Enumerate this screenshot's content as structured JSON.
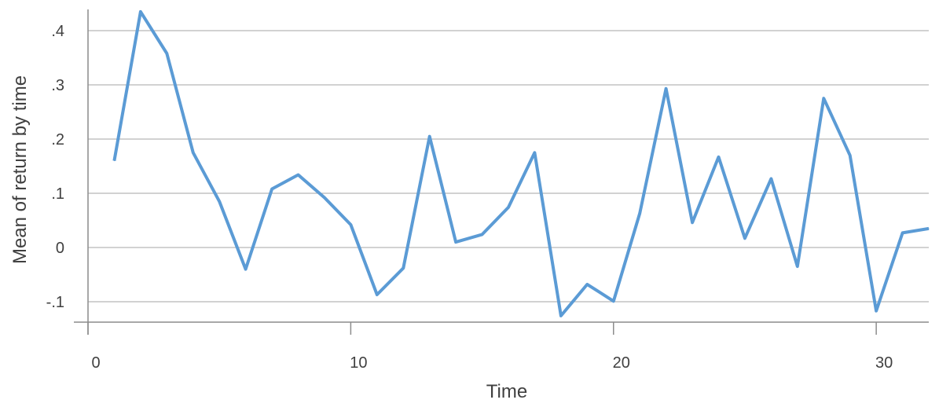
{
  "chart_data": {
    "type": "line",
    "title": "",
    "xlabel": "Time",
    "ylabel": "Mean of return by time",
    "xlim": [
      0,
      32
    ],
    "ylim": [
      -0.14,
      0.44
    ],
    "x_ticks": [
      0,
      10,
      20,
      30
    ],
    "x_tick_labels": [
      "0",
      "10",
      "20",
      "30"
    ],
    "y_ticks": [
      -0.1,
      0,
      0.1,
      0.2,
      0.3,
      0.4
    ],
    "y_tick_labels": [
      "-.1",
      "0",
      ".1",
      ".2",
      ".3",
      ".4"
    ],
    "grid": "horizontal",
    "legend": "none",
    "line_color": "#5b9bd5",
    "series": [
      {
        "x": [
          1,
          2,
          3,
          4,
          5,
          6,
          7,
          8,
          9,
          10,
          11,
          12,
          13,
          14,
          15,
          16,
          17,
          18,
          19,
          20,
          21,
          22,
          23,
          24,
          25,
          26,
          27,
          28,
          29,
          30,
          31,
          32
        ],
        "values": [
          0.16,
          0.435,
          0.358,
          0.175,
          0.085,
          -0.04,
          0.108,
          0.134,
          0.092,
          0.042,
          -0.087,
          -0.038,
          0.205,
          0.01,
          0.024,
          0.074,
          0.175,
          -0.126,
          -0.068,
          -0.099,
          0.063,
          0.293,
          0.046,
          0.167,
          0.017,
          0.127,
          -0.035,
          0.275,
          0.17,
          -0.117,
          0.027,
          0.035
        ]
      }
    ]
  }
}
